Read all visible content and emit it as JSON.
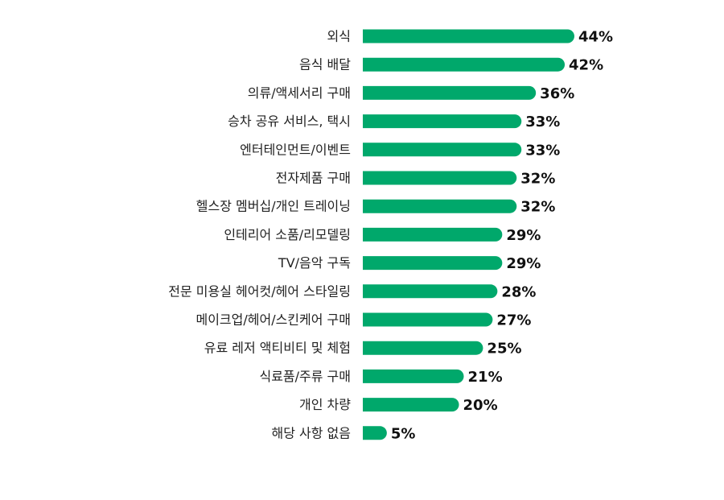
{
  "chart_data": {
    "type": "bar",
    "orientation": "horizontal",
    "categories": [
      "외식",
      "음식 배달",
      "의류/액세서리 구매",
      "승차 공유 서비스, 택시",
      "엔터테인먼트/이벤트",
      "전자제품 구매",
      "헬스장 멤버십/개인 트레이닝",
      "인테리어 소품/리모델링",
      "TV/음악 구독",
      "전문 미용실 헤어컷/헤어 스타일링",
      "메이크업/헤어/스킨케어 구매",
      "유료 레저 액티비티 및 체험",
      "식료품/주류 구매",
      "개인 차량",
      "해당 사항 없음"
    ],
    "values": [
      44,
      42,
      36,
      33,
      33,
      32,
      32,
      29,
      29,
      28,
      27,
      25,
      21,
      20,
      5
    ],
    "value_labels": [
      "44%",
      "42%",
      "36%",
      "33%",
      "33%",
      "32%",
      "32%",
      "29%",
      "29%",
      "28%",
      "27%",
      "25%",
      "21%",
      "20%",
      "5%"
    ],
    "unit": "%",
    "xlim": [
      0,
      44
    ],
    "color": "#00a86b",
    "label_color": "#222222",
    "value_color": "#111111",
    "grid": false,
    "legend": "none"
  }
}
